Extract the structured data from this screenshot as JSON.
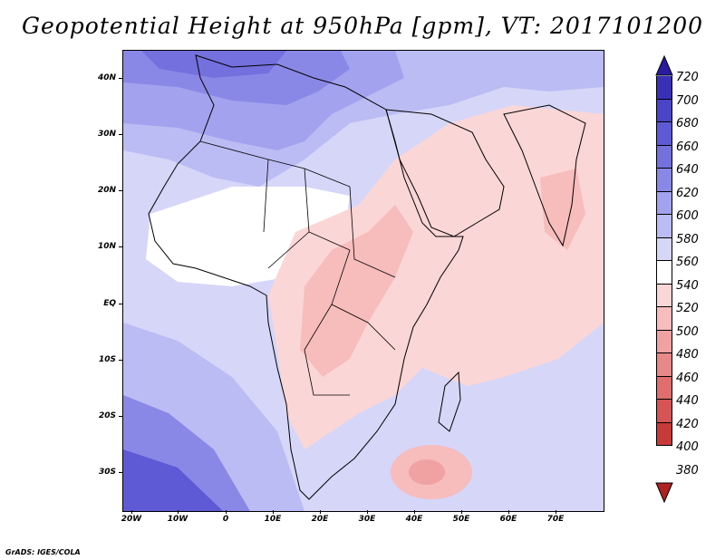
{
  "title": "Geopotential Height at 950hPa [gpm], VT: 2017101200",
  "footer": "GrADS: IGES/COLA",
  "y_ticks": [
    "40N",
    "30N",
    "20N",
    "10N",
    "EQ",
    "10S",
    "20S",
    "30S"
  ],
  "x_ticks": [
    "20W",
    "10W",
    "0",
    "10E",
    "20E",
    "30E",
    "40E",
    "50E",
    "60E",
    "70E"
  ],
  "colorbar": {
    "levels": [
      "720",
      "700",
      "680",
      "660",
      "640",
      "620",
      "600",
      "580",
      "560",
      "540",
      "520",
      "500",
      "480",
      "460",
      "440",
      "420",
      "400",
      "380"
    ],
    "colors": [
      "#2a1aa0",
      "#3a30b8",
      "#4a44c8",
      "#5e5ad6",
      "#7470de",
      "#8a88e6",
      "#a3a2ee",
      "#bcbcf4",
      "#d6d6f8",
      "#ffffff",
      "#fbd6d6",
      "#f7bcbc",
      "#f0a2a2",
      "#e88888",
      "#e06e6e",
      "#d65454",
      "#c83a3a",
      "#b02222"
    ]
  },
  "field_colors": {
    "land_outline": "#000000",
    "deep_low": "#5e5ad6",
    "mid_low": "#8a88e6",
    "light_low": "#bcbcf4",
    "pale_low": "#d6d6f8",
    "neutral": "#ffffff",
    "pale_high": "#fbd6d6",
    "light_high": "#f7bcbc",
    "mid_high": "#f0a2a2"
  }
}
